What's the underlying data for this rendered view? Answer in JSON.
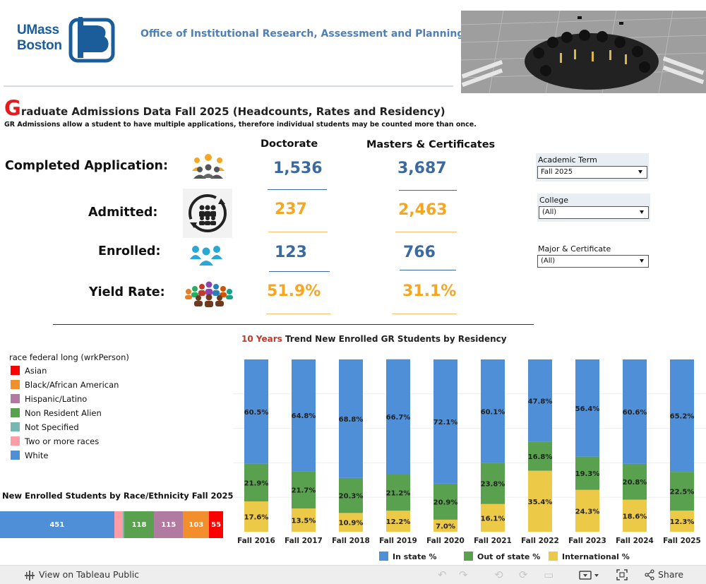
{
  "header": {
    "logo_line1": "UMass",
    "logo_line2": "Boston",
    "office": "Office of Institutional Research, Assessment and Planning",
    "brand_color": "#1b5d9b"
  },
  "title": {
    "initial": "G",
    "rest": "raduate Admissions Data Fall 2025  (Headcounts, Rates and Residency)",
    "subtitle": "GR Admissions allow a student to have multiple applications, therefore individual students may be counted more than once."
  },
  "kpis": {
    "columns": [
      "Doctorate",
      "Masters & Certificates"
    ],
    "rows": [
      {
        "label": "Completed Application:",
        "icon": "group-people-icon",
        "doctorate": "1,536",
        "masters": "3,687",
        "color": "blue"
      },
      {
        "label": "Admitted:",
        "icon": "group-cycle-icon",
        "doctorate": "237",
        "masters": "2,463",
        "color": "orange"
      },
      {
        "label": "Enrolled:",
        "icon": "three-people-icon",
        "doctorate": "123",
        "masters": "766",
        "color": "blue"
      },
      {
        "label": "Yield Rate:",
        "icon": "crowd-icon",
        "doctorate": "51.9%",
        "masters": "31.1%",
        "color": "orange"
      }
    ]
  },
  "filters": [
    {
      "label": "Academic Term",
      "value": "Fall 2025"
    },
    {
      "label": "College",
      "value": "(All)"
    },
    {
      "label": "Major & Certificate",
      "value": "(All)"
    }
  ],
  "race_legend": {
    "title": "race federal long (wrkPerson)",
    "items": [
      {
        "label": "Asian",
        "color": "#ff0000"
      },
      {
        "label": "Black/African American",
        "color": "#f28e2b"
      },
      {
        "label": "Hispanic/Latino",
        "color": "#b07aa1"
      },
      {
        "label": "Non Resident Alien",
        "color": "#59a14f"
      },
      {
        "label": "Not Specified",
        "color": "#76b7b2"
      },
      {
        "label": "Two or more races",
        "color": "#ff9da7"
      },
      {
        "label": "White",
        "color": "#4e8fd8"
      }
    ]
  },
  "race_bar": {
    "title": "New Enrolled Students by Race/Ethnicity Fall 2025",
    "segments": [
      {
        "label": "White",
        "value": 451,
        "color": "#4e8fd8",
        "shown": "451"
      },
      {
        "label": "Two or more races",
        "value": 36,
        "color": "#ff9da7",
        "shown": ""
      },
      {
        "label": "Not Specified",
        "value": 4,
        "color": "#76b7b2",
        "shown": ""
      },
      {
        "label": "Non Resident Alien",
        "value": 118,
        "color": "#59a14f",
        "shown": "118"
      },
      {
        "label": "Hispanic/Latino",
        "value": 115,
        "color": "#b07aa1",
        "shown": "115"
      },
      {
        "label": "Black/African American",
        "value": 103,
        "color": "#f28e2b",
        "shown": "103"
      },
      {
        "label": "Asian",
        "value": 55,
        "color": "#ff0000",
        "shown": "55"
      }
    ]
  },
  "trend_title": {
    "accent": "10 Years",
    "rest": " Trend New Enrolled GR Students by Residency"
  },
  "chart_data": {
    "type": "bar",
    "stacked": true,
    "categories": [
      "Fall 2016",
      "Fall 2017",
      "Fall 2018",
      "Fall 2019",
      "Fall 2020",
      "Fall 2021",
      "Fall 2022",
      "Fall 2023",
      "Fall 2024",
      "Fall 2025"
    ],
    "series": [
      {
        "name": "International %",
        "color": "#edc948",
        "values": [
          17.6,
          13.5,
          10.9,
          12.2,
          7.0,
          16.1,
          35.4,
          24.3,
          18.6,
          12.3
        ]
      },
      {
        "name": "Out of state %",
        "color": "#59a14f",
        "values": [
          21.9,
          21.7,
          20.3,
          21.2,
          20.9,
          23.8,
          16.8,
          19.3,
          20.8,
          22.5
        ]
      },
      {
        "name": "In state %",
        "color": "#4e8fd8",
        "values": [
          60.5,
          64.8,
          68.8,
          66.7,
          72.1,
          60.1,
          47.8,
          56.4,
          60.6,
          65.2
        ]
      }
    ],
    "legend_order": [
      "In state %",
      "Out of state %",
      "International %"
    ],
    "ylim": [
      0,
      100
    ],
    "legend_position": "bottom"
  },
  "toolbar": {
    "view_label": "View on Tableau Public",
    "share_label": "Share"
  }
}
